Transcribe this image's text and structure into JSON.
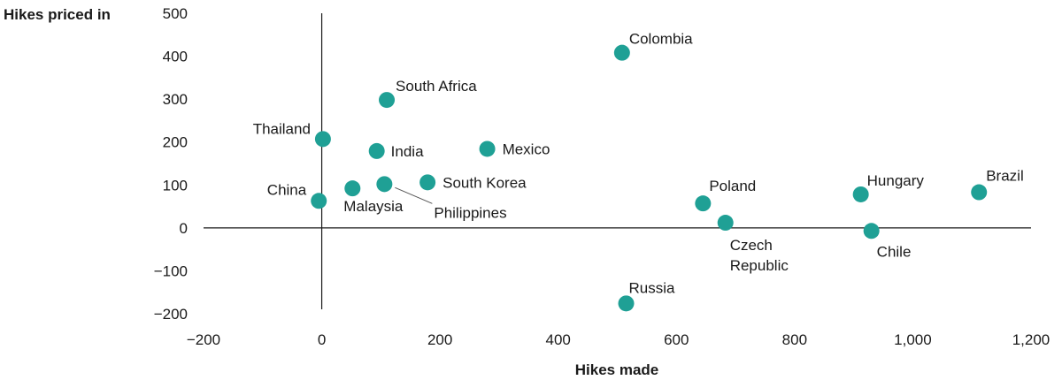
{
  "chart_data": {
    "type": "scatter",
    "xlabel": "Hikes made",
    "ylabel": "Hikes priced in",
    "xlim": [
      -200,
      1200
    ],
    "ylim": [
      -200,
      500
    ],
    "xticks": [
      -200,
      0,
      200,
      400,
      600,
      800,
      1000,
      1200
    ],
    "xtick_labels": [
      "−200",
      "0",
      "200",
      "400",
      "600",
      "800",
      "1,000",
      "1,200"
    ],
    "yticks": [
      500,
      400,
      300,
      200,
      100,
      0,
      -100,
      -200
    ],
    "ytick_labels": [
      "500",
      "400",
      "300",
      "200",
      "100",
      "0",
      "−100",
      "−200"
    ],
    "grid": false,
    "colors": {
      "point": "#1fa095"
    },
    "points": [
      {
        "label": "Colombia",
        "x": 508,
        "y": 408
      },
      {
        "label": "South Africa",
        "x": 110,
        "y": 298
      },
      {
        "label": "Thailand",
        "x": 2,
        "y": 207
      },
      {
        "label": "India",
        "x": 93,
        "y": 179
      },
      {
        "label": "Mexico",
        "x": 280,
        "y": 184
      },
      {
        "label": "China",
        "x": -5,
        "y": 63
      },
      {
        "label": "Malaysia",
        "x": 52,
        "y": 92
      },
      {
        "label": "Philippines",
        "x": 106,
        "y": 102
      },
      {
        "label": "South Korea",
        "x": 179,
        "y": 106
      },
      {
        "label": "Poland",
        "x": 645,
        "y": 57
      },
      {
        "label": "Czech Republic",
        "x": 683,
        "y": 12
      },
      {
        "label": "Hungary",
        "x": 912,
        "y": 78
      },
      {
        "label": "Chile",
        "x": 930,
        "y": -7
      },
      {
        "label": "Brazil",
        "x": 1112,
        "y": 83
      },
      {
        "label": "Russia",
        "x": 515,
        "y": -176
      }
    ]
  }
}
